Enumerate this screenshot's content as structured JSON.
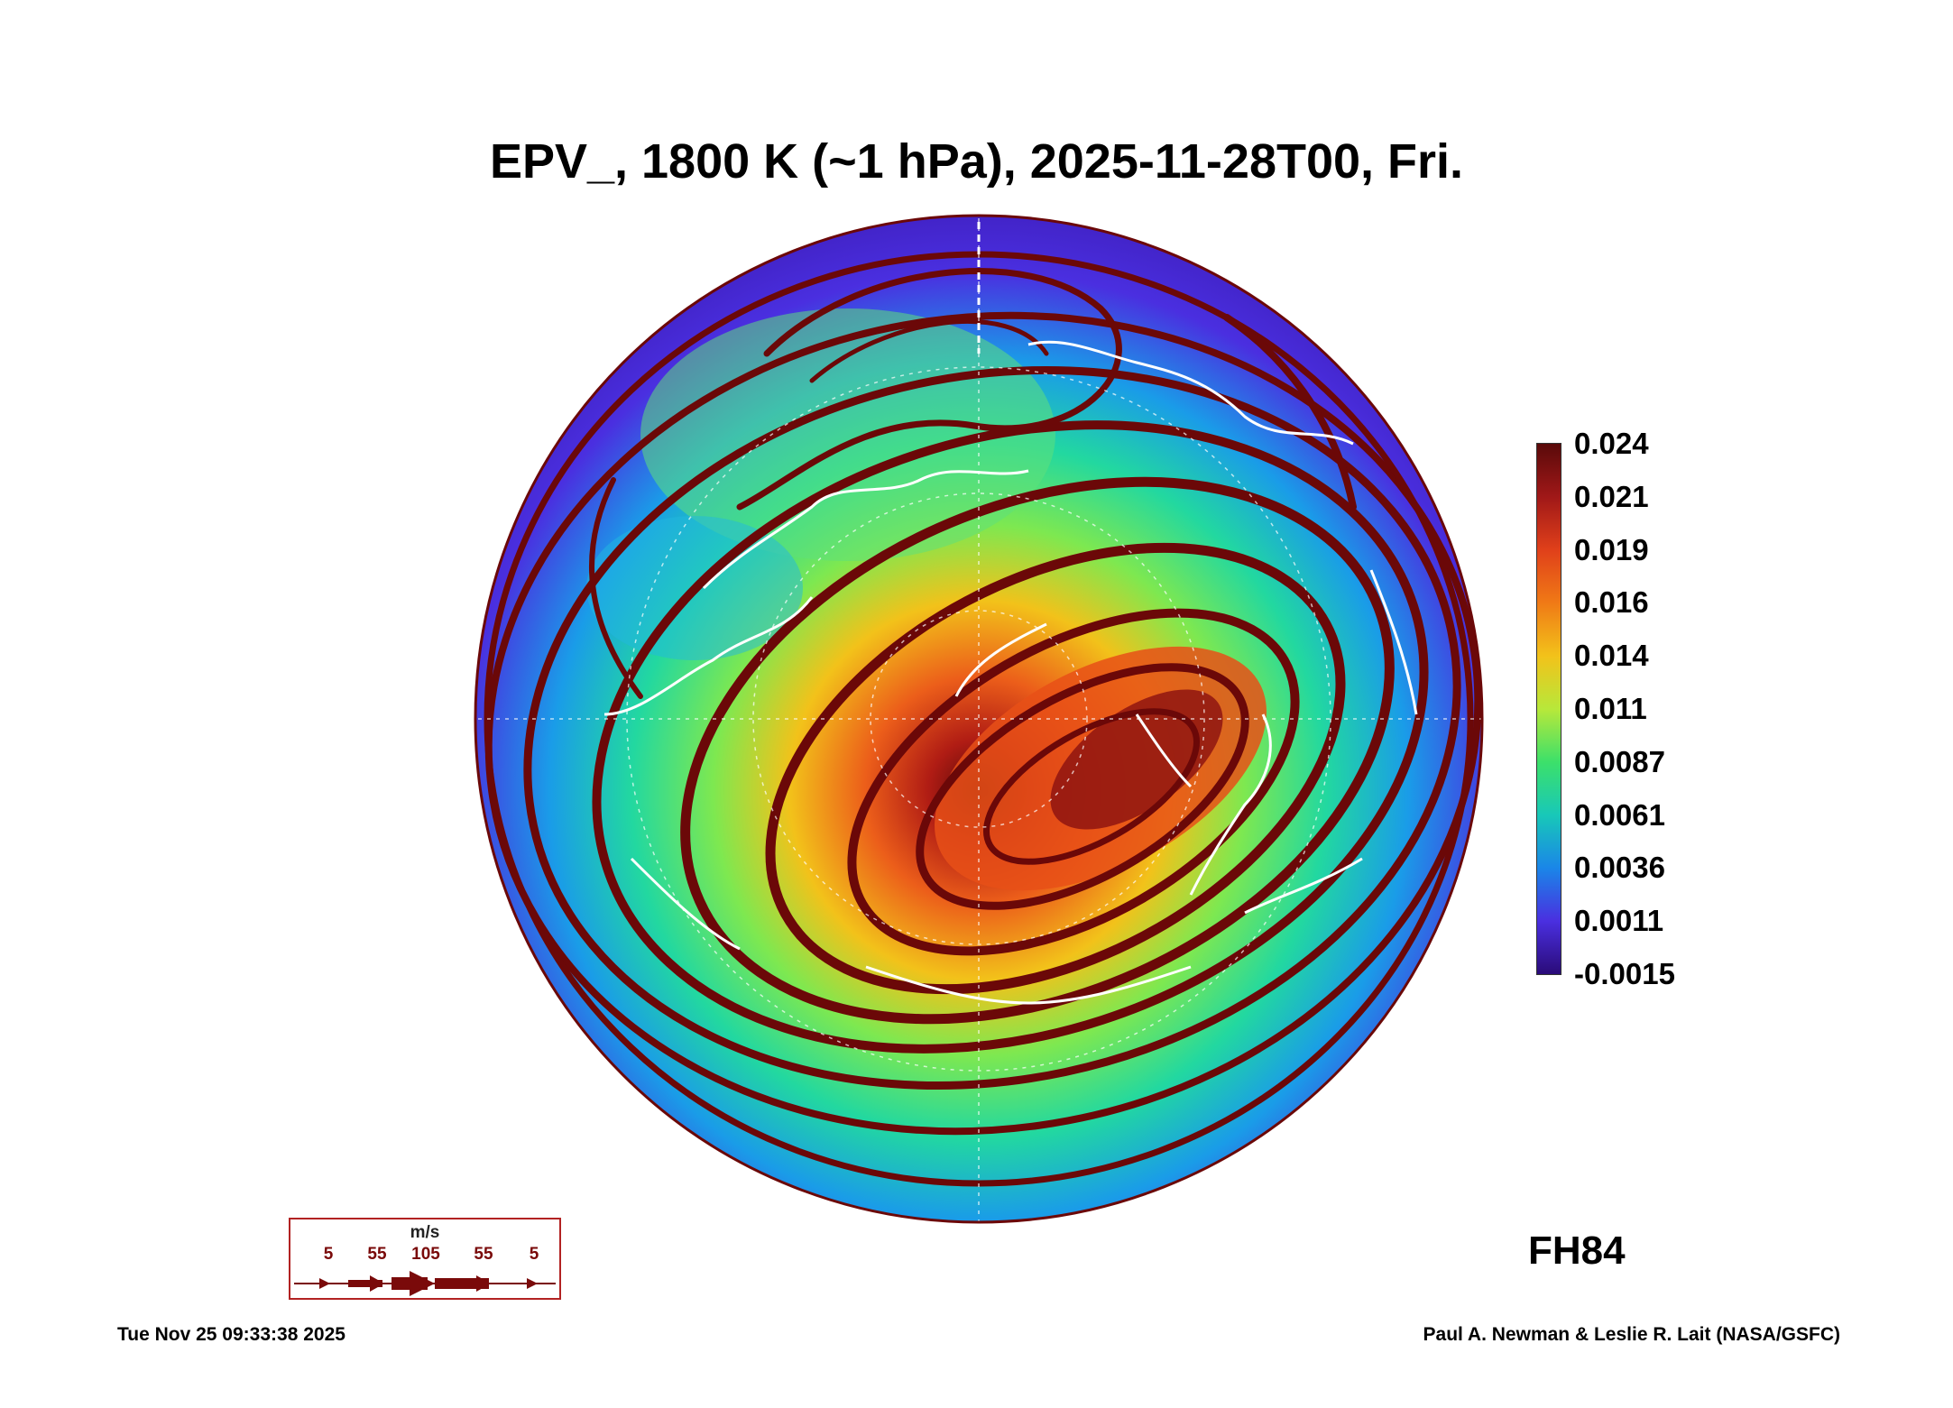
{
  "title": "EPV_, 1800 K (~1 hPa), 2025-11-28T00, Fri.",
  "colorbar": {
    "labels": [
      "0.024",
      "0.021",
      "0.019",
      "0.016",
      "0.014",
      "0.011",
      "0.0087",
      "0.0061",
      "0.0036",
      "0.0011",
      "-0.0015"
    ],
    "colors_top_to_bottom": [
      "#5a0a0a",
      "#a01818",
      "#e0401a",
      "#f07a16",
      "#f2c21a",
      "#b8e83a",
      "#3ce06a",
      "#18c8b8",
      "#1a86e8",
      "#4a2fe0",
      "#2a0b78"
    ]
  },
  "legend": {
    "units": "m/s",
    "speeds": [
      "5",
      "55",
      "105",
      "55",
      "5"
    ],
    "arrow_color": "#7a0a0a"
  },
  "forecast_hour": "FH84",
  "footer": {
    "timestamp": "Tue Nov 25 09:33:38 2025",
    "credit": "Paul A. Newman & Leslie R. Lait (NASA/GSFC)"
  },
  "colors": {
    "streamline": "#6b0808",
    "coastline": "#ffffff"
  }
}
